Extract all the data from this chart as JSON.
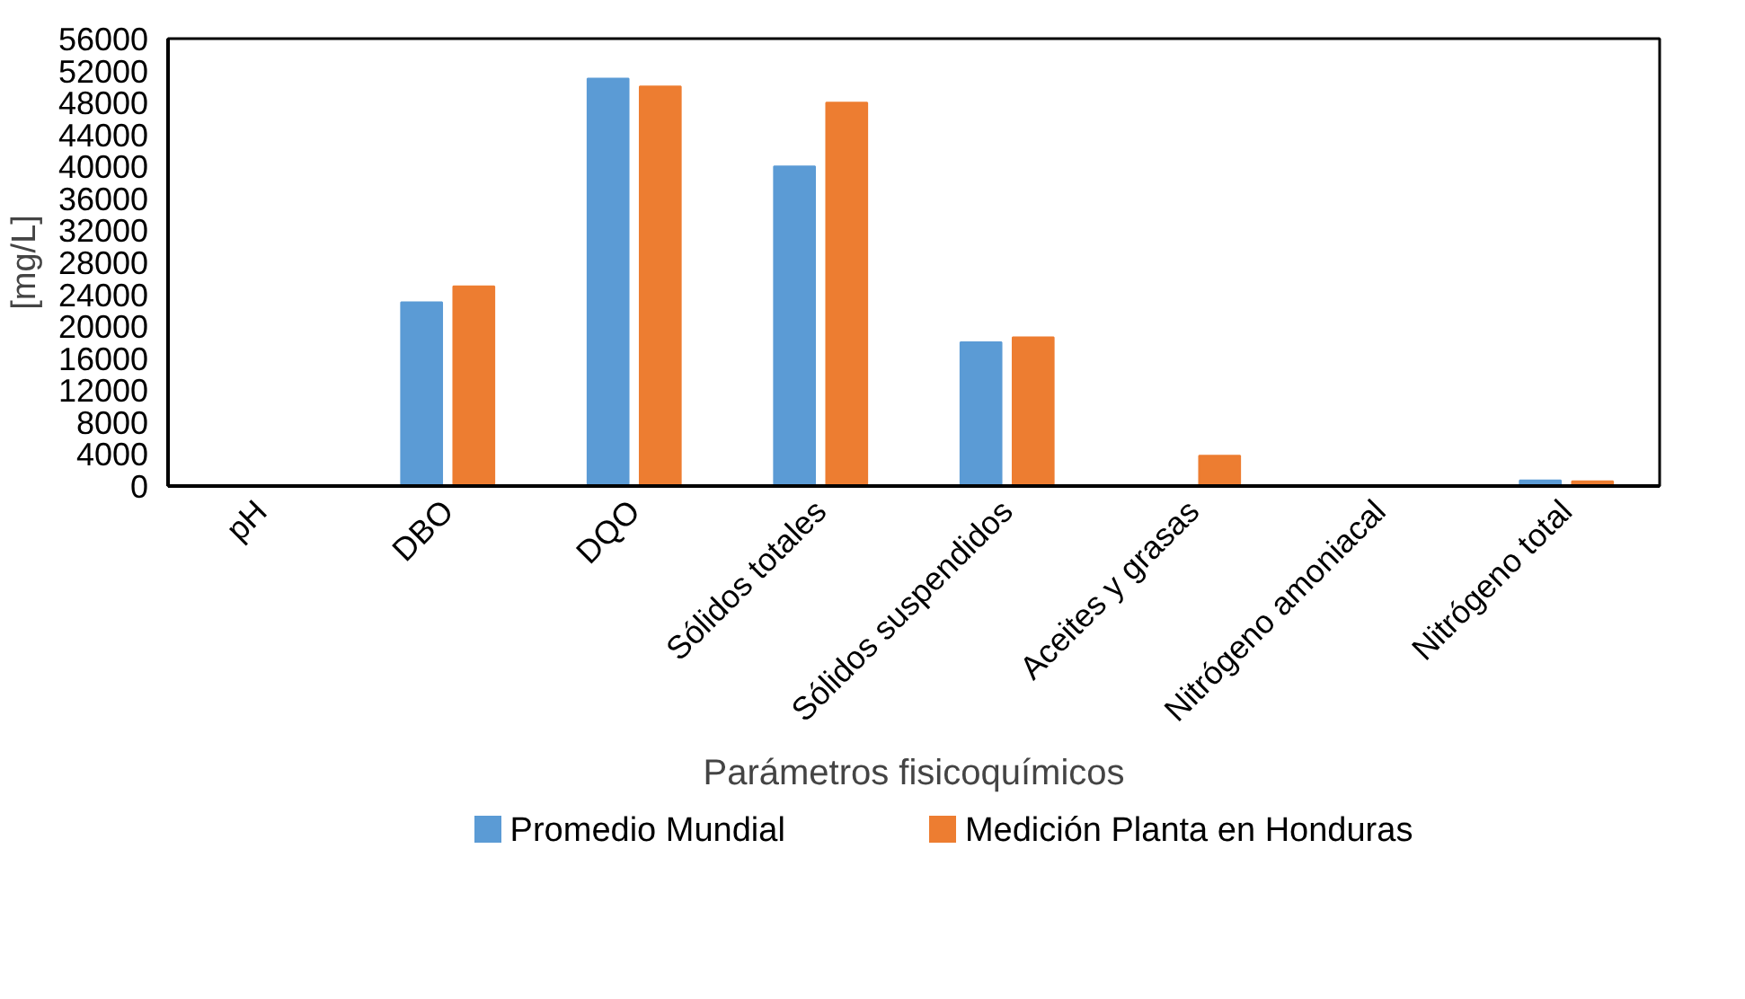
{
  "chart_data": {
    "type": "bar",
    "categories": [
      "pH",
      "DBO",
      "DQO",
      "Sólidos totales",
      "Sólidos suspendidos",
      "Aceites y grasas",
      "Nitrógeno amoniacal",
      "Nitrógeno total"
    ],
    "series": [
      {
        "name": "Promedio Mundial",
        "color": "#5b9bd5",
        "values": [
          null,
          23000,
          51000,
          40000,
          18000,
          null,
          null,
          700
        ]
      },
      {
        "name": "Medición Planta en Honduras",
        "color": "#ed7d31",
        "values": [
          null,
          25000,
          50000,
          48000,
          18600,
          3800,
          null,
          600
        ]
      }
    ],
    "xlabel": "Parámetros fisicoquímicos",
    "ylabel": "[mg/L]",
    "ylim": [
      0,
      56000
    ],
    "yticks": [
      0,
      4000,
      8000,
      12000,
      16000,
      20000,
      24000,
      28000,
      32000,
      36000,
      40000,
      44000,
      48000,
      52000,
      56000
    ],
    "grid": false,
    "legend": "bottom"
  }
}
